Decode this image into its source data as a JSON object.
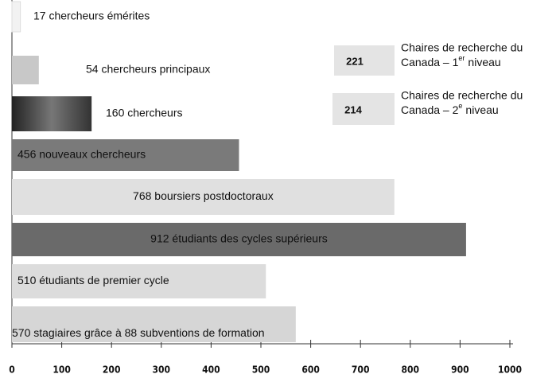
{
  "chart_data": {
    "type": "bar",
    "orientation": "horizontal",
    "values": [
      17,
      54,
      160,
      456,
      768,
      912,
      510,
      570
    ],
    "value_labels": [
      "17 chercheurs émérites",
      "54 chercheurs principaux",
      "160 chercheurs",
      "456 nouveaux chercheurs",
      "768 boursiers postdoctoraux",
      "912 étudiants des cycles supérieurs",
      "510 étudiants de premier cycle",
      "570 stagiaires grâce à 88 subventions de formation"
    ],
    "colors": [
      "#f2f2f2",
      "#c8c8c8",
      "#555555",
      "#7a7a7a",
      "#e0e0e0",
      "#6a6a6a",
      "#dcdcdc",
      "#d6d6d6"
    ],
    "xlim": [
      0,
      1000
    ],
    "xticks": [
      0,
      100,
      200,
      300,
      400,
      500,
      600,
      700,
      800,
      900,
      1000
    ],
    "notes": [
      {
        "value": 221,
        "line1": "Chaires de recherche du",
        "line2": "Canada – 1",
        "sup": "er",
        "line3": "niveau"
      },
      {
        "value": 214,
        "line1": "Chaires de recherche du",
        "line2": "Canada – 2",
        "sup": "e",
        "line3": "niveau"
      }
    ]
  }
}
